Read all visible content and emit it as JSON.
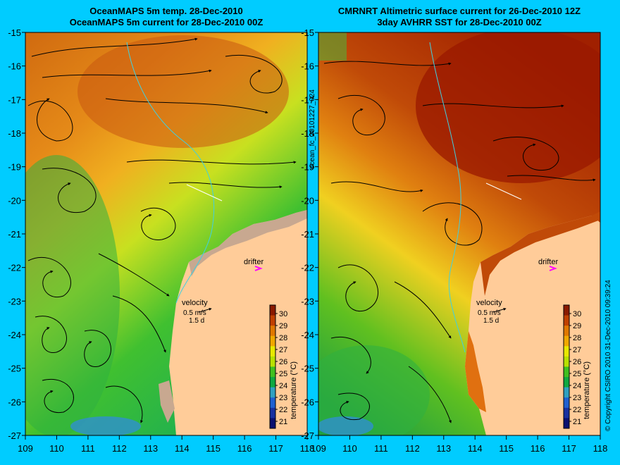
{
  "left_panel": {
    "title_line1": "OceanMAPS 5m temp. 28-Dec-2010",
    "title_line2": "OceanMAPS 5m current for 28-Dec-2010 00Z"
  },
  "right_panel": {
    "title_line1": "CMRNRT Altimetric surface current for 26-Dec-2010 12Z",
    "title_line2": "3day AVHRR SST for 28-Dec-2010 00Z"
  },
  "axes": {
    "lon_ticks": [
      "109",
      "110",
      "111",
      "112",
      "113",
      "114",
      "115",
      "116",
      "117",
      "118"
    ],
    "lat_ticks": [
      "-15",
      "-16",
      "-17",
      "-18",
      "-19",
      "-20",
      "-21",
      "-22",
      "-23",
      "-24",
      "-25",
      "-26",
      "-27"
    ]
  },
  "annotations": {
    "drifter_label": "drifter",
    "velocity_label": "velocity",
    "speed_label": "0.5 m/s",
    "days_label": "1.5 d"
  },
  "colorbar": {
    "label": "temperature (°C)",
    "ticks": [
      "30",
      "29",
      "28",
      "27",
      "26",
      "25",
      "24",
      "23",
      "22",
      "21"
    ],
    "colors": [
      "#8a1a00",
      "#c04000",
      "#e07800",
      "#f0a800",
      "#e8e800",
      "#b8e000",
      "#40c020",
      "#10a840",
      "#30a0c0",
      "#2060d0",
      "#1830a0",
      "#0a1070"
    ]
  },
  "side_text": {
    "forecast_id": "ocean_fc_20101227_024",
    "copyright": "© Copyright CSIRO 2010  31-Dec-2010 09:39:24"
  },
  "colors": {
    "background": "#00ccff",
    "land": "#ffcc99",
    "shelf_land": "#c8a890",
    "drifter_marker": "#ff00ff"
  }
}
